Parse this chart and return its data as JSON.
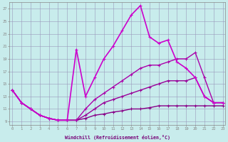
{
  "bg_color": "#c8ecec",
  "xlabel": "Windchill (Refroidissement éolien,°C)",
  "yticks": [
    9,
    11,
    13,
    15,
    17,
    19,
    21,
    23,
    25,
    27
  ],
  "xticks": [
    0,
    1,
    2,
    3,
    4,
    5,
    6,
    7,
    8,
    9,
    10,
    11,
    12,
    13,
    14,
    15,
    16,
    17,
    18,
    19,
    20,
    21,
    22,
    23
  ],
  "xlim": [
    -0.3,
    23.3
  ],
  "ylim": [
    8.5,
    28.0
  ],
  "series": [
    {
      "x": [
        0,
        1,
        2,
        3,
        4,
        5,
        6,
        7,
        8,
        9,
        10,
        11,
        12,
        13,
        14,
        15,
        16,
        17,
        18,
        19,
        20,
        21,
        22,
        23
      ],
      "y": [
        14,
        12,
        11,
        10,
        9.5,
        9.2,
        9.2,
        9.2,
        9.5,
        10,
        10.2,
        10.5,
        10.7,
        11,
        11,
        11.2,
        11.5,
        11.5,
        11.5,
        11.5,
        11.5,
        11.5,
        11.5,
        11.5
      ],
      "color": "#880088",
      "lw": 1.0
    },
    {
      "x": [
        0,
        1,
        2,
        3,
        4,
        5,
        6,
        7,
        8,
        9,
        10,
        11,
        12,
        13,
        14,
        15,
        16,
        17,
        18,
        19,
        20,
        21,
        22,
        23
      ],
      "y": [
        14,
        12,
        11,
        10,
        9.5,
        9.2,
        9.2,
        9.2,
        10,
        11,
        12,
        12.5,
        13,
        13.5,
        14,
        14.5,
        15,
        15.5,
        15.5,
        15.5,
        16,
        13,
        12,
        12
      ],
      "color": "#990099",
      "lw": 1.0
    },
    {
      "x": [
        0,
        1,
        2,
        3,
        4,
        5,
        6,
        7,
        8,
        9,
        10,
        11,
        12,
        13,
        14,
        15,
        16,
        17,
        18,
        19,
        20,
        21,
        22,
        23
      ],
      "y": [
        14,
        12,
        11,
        10,
        9.5,
        9.2,
        9.2,
        9.2,
        11,
        12.5,
        13.5,
        14.5,
        15.5,
        16.5,
        17.5,
        18,
        18,
        18.5,
        19,
        19,
        20,
        16,
        12,
        12
      ],
      "color": "#aa00aa",
      "lw": 1.0
    },
    {
      "x": [
        0,
        1,
        2,
        3,
        4,
        5,
        6,
        7,
        8,
        9,
        10,
        11,
        12,
        13,
        14,
        15,
        16,
        17,
        18,
        19,
        20,
        21,
        22,
        23
      ],
      "y": [
        14,
        12,
        11,
        10,
        9.5,
        9.2,
        9.2,
        20.5,
        13,
        16,
        19,
        21,
        23.5,
        26,
        27.5,
        22.5,
        21.5,
        22,
        18.5,
        17.5,
        16,
        13,
        12,
        12
      ],
      "color": "#cc00cc",
      "lw": 1.2
    }
  ]
}
